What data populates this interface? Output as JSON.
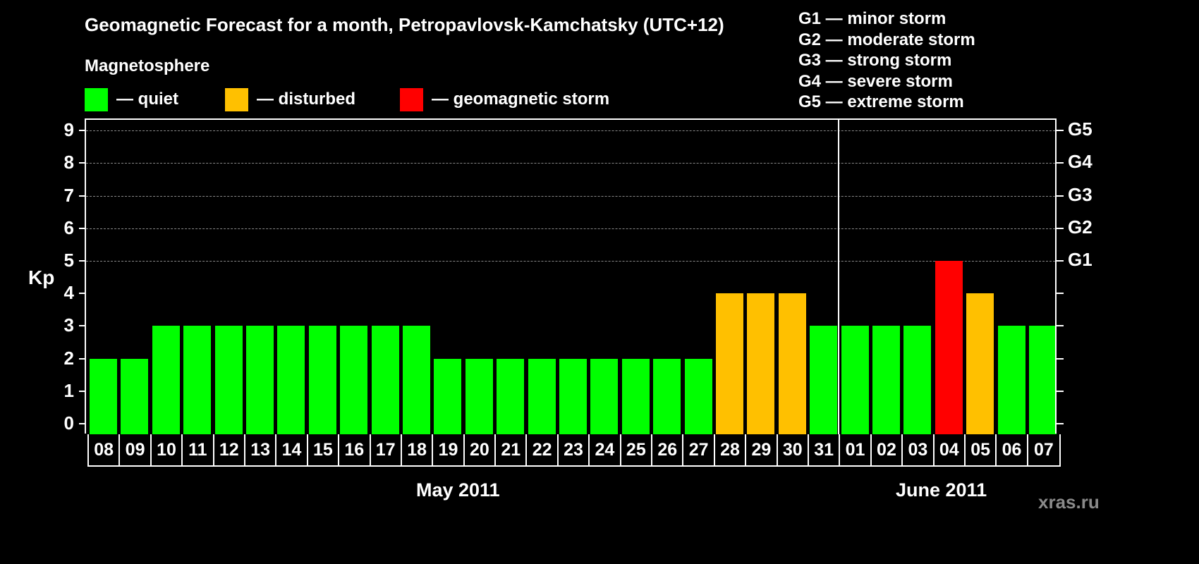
{
  "chart_data": {
    "type": "bar",
    "title": "Geomagnetic Forecast for a month, Petropavlovsk-Kamchatsky (UTC+12)",
    "subtitle": "Magnetosphere",
    "ylabel": "Kp",
    "ylim": [
      0,
      9
    ],
    "yticks": [
      0,
      1,
      2,
      3,
      4,
      5,
      6,
      7,
      8,
      9
    ],
    "grid": "dashed horizontal lines at 5,6,7,8,9",
    "right_axis_labels": [
      {
        "value": 5,
        "label": "G1"
      },
      {
        "value": 6,
        "label": "G2"
      },
      {
        "value": 7,
        "label": "G3"
      },
      {
        "value": 8,
        "label": "G4"
      },
      {
        "value": 9,
        "label": "G5"
      }
    ],
    "categories": [
      "08",
      "09",
      "10",
      "11",
      "12",
      "13",
      "14",
      "15",
      "16",
      "17",
      "18",
      "19",
      "20",
      "21",
      "22",
      "23",
      "24",
      "25",
      "26",
      "27",
      "28",
      "29",
      "30",
      "31",
      "01",
      "02",
      "03",
      "04",
      "05",
      "06",
      "07"
    ],
    "values": [
      2,
      2,
      3,
      3,
      3,
      3,
      3,
      3,
      3,
      3,
      3,
      2,
      2,
      2,
      2,
      2,
      2,
      2,
      2,
      2,
      4,
      4,
      4,
      3,
      3,
      3,
      3,
      5,
      4,
      3,
      3
    ],
    "status": [
      "quiet",
      "quiet",
      "quiet",
      "quiet",
      "quiet",
      "quiet",
      "quiet",
      "quiet",
      "quiet",
      "quiet",
      "quiet",
      "quiet",
      "quiet",
      "quiet",
      "quiet",
      "quiet",
      "quiet",
      "quiet",
      "quiet",
      "quiet",
      "disturbed",
      "disturbed",
      "disturbed",
      "quiet",
      "quiet",
      "quiet",
      "quiet",
      "storm",
      "disturbed",
      "quiet",
      "quiet"
    ],
    "months": [
      {
        "label": "May 2011",
        "start_index": 0,
        "end_index": 23
      },
      {
        "label": "June 2011",
        "start_index": 24,
        "end_index": 30
      }
    ],
    "legend": [
      {
        "key": "quiet",
        "label": "— quiet",
        "color": "#00ff00"
      },
      {
        "key": "disturbed",
        "label": "— disturbed",
        "color": "#ffc000"
      },
      {
        "key": "storm",
        "label": "— geomagnetic storm",
        "color": "#ff0000"
      }
    ],
    "g_scale": [
      "G1 — minor storm",
      "G2 — moderate storm",
      "G3 — strong storm",
      "G4 — severe storm",
      "G5 — extreme storm"
    ]
  },
  "header": {
    "title": "Geomagnetic Forecast for a month, Petropavlovsk-Kamchatsky (UTC+12)",
    "subtitle": "Magnetosphere"
  },
  "legend": {
    "quiet": "— quiet",
    "disturbed": "— disturbed",
    "storm": "— geomagnetic storm"
  },
  "g_scale": {
    "g1": "G1 — minor storm",
    "g2": "G2 — moderate storm",
    "g3": "G3 — strong storm",
    "g4": "G4 — severe storm",
    "g5": "G5 — extreme storm"
  },
  "axis": {
    "ylabel": "Kp"
  },
  "months": {
    "may": "May 2011",
    "june": "June 2011"
  },
  "colors": {
    "quiet": "#00ff00",
    "disturbed": "#ffc000",
    "storm": "#ff0000",
    "grid": "#888888",
    "brand": "#8a8a8a"
  },
  "brand": "xras.ru"
}
